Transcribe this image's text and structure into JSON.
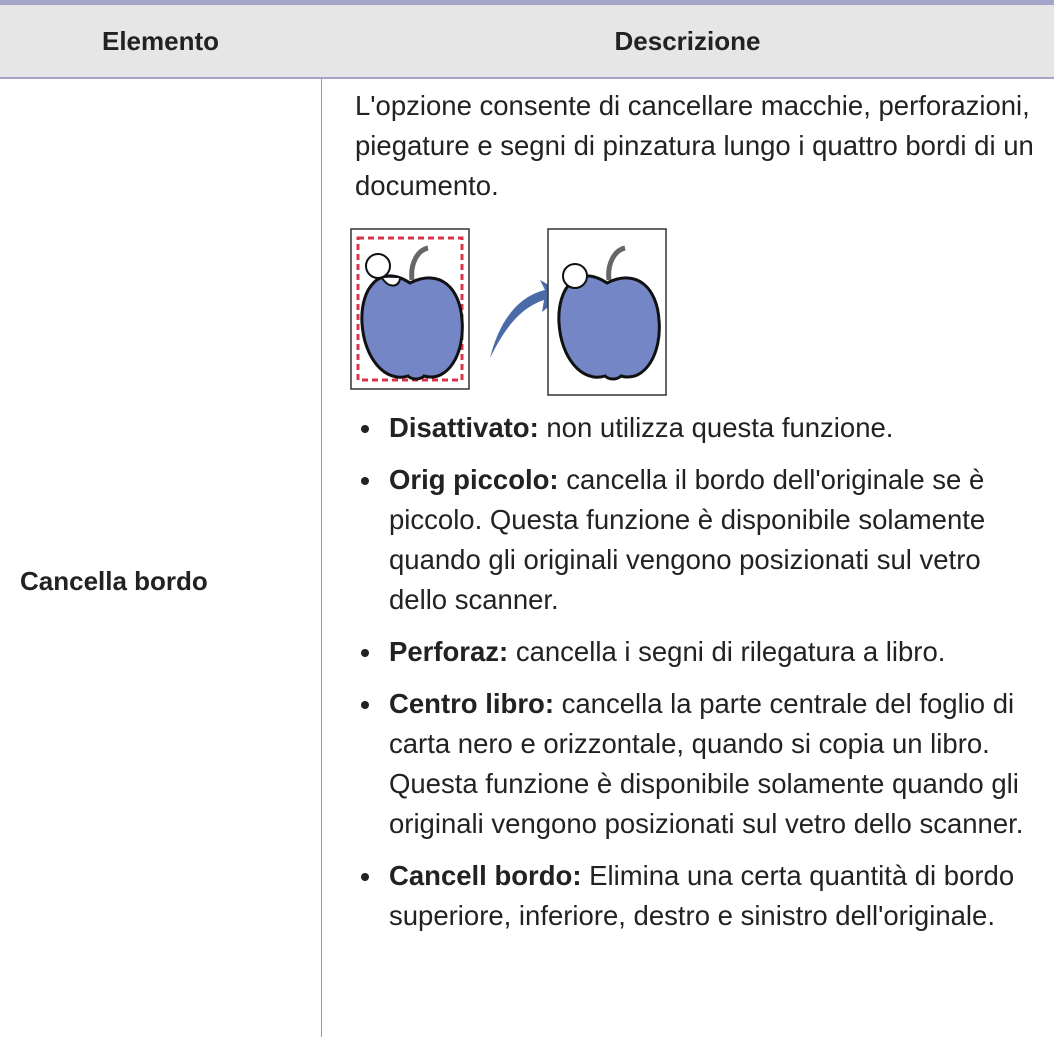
{
  "table": {
    "header": [
      "Elemento",
      "Descrizione"
    ],
    "rows": [
      {
        "element": "Cancella bordo",
        "description": {
          "paragraph": "L'opzione consente di cancellare macchie, perforazioni, piegature e segni di pinzatura lungo i quattro bordi di un documento.",
          "items": [
            {
              "term": "Disattivato:",
              "text": "non utilizza questa funzione."
            },
            {
              "term": "Orig piccolo:",
              "text": "cancella il bordo dell'originale se è piccolo. Questa funzione è disponibile solamente quando gli originali vengono posizionati sul vetro dello scanner."
            },
            {
              "term": "Perforaz:",
              "text": "cancella i segni di rilegatura a libro."
            },
            {
              "term": "Centro libro:",
              "text": "cancella la parte centrale del foglio di carta nero e orizzontale, quando si copia un libro. Questa funzione è disponibile solamente quando gli originali vengono posizionati sul vetro dello scanner."
            },
            {
              "term": "Cancell bordo:",
              "text": "Elimina una certa quantità di bordo superiore, inferiore, destro e sinistro dell'originale."
            }
          ]
        }
      }
    ]
  }
}
